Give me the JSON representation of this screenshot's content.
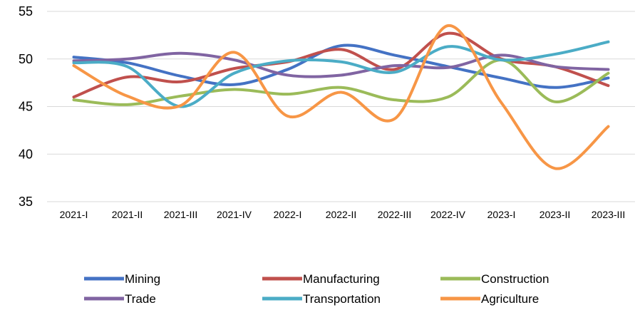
{
  "chart_data": {
    "type": "line",
    "categories": [
      "2021-I",
      "2021-II",
      "2021-III",
      "2021-IV",
      "2022-I",
      "2022-II",
      "2022-III",
      "2022-IV",
      "2023-I",
      "2023-II",
      "2023-III"
    ],
    "ylim": [
      35,
      55
    ],
    "yticks": [
      35,
      40,
      45,
      50,
      55
    ],
    "grid": "horizontal",
    "smooth": true,
    "legend_position": "bottom",
    "series": [
      {
        "name": "Mining",
        "color": "#4472C4",
        "values": [
          50.2,
          49.6,
          48.2,
          47.3,
          48.9,
          51.4,
          50.4,
          49.2,
          48.0,
          47.0,
          48.0
        ]
      },
      {
        "name": "Manufacturing",
        "color": "#C0504D",
        "values": [
          46.0,
          48.1,
          47.6,
          49.0,
          49.7,
          51.0,
          48.9,
          52.7,
          50.0,
          49.2,
          47.2
        ]
      },
      {
        "name": "Construction",
        "color": "#9BBB59",
        "values": [
          45.7,
          45.2,
          46.1,
          46.8,
          46.3,
          47.0,
          45.7,
          46.0,
          49.9,
          45.5,
          48.5
        ]
      },
      {
        "name": "Trade",
        "color": "#8064A2",
        "values": [
          49.8,
          50.0,
          50.6,
          49.9,
          48.3,
          48.3,
          49.3,
          49.1,
          50.4,
          49.2,
          48.9
        ]
      },
      {
        "name": "Transportation",
        "color": "#4BACC6",
        "values": [
          49.6,
          49.2,
          45.0,
          48.5,
          49.8,
          49.7,
          48.6,
          51.3,
          49.9,
          50.5,
          51.8
        ]
      },
      {
        "name": "Agriculture",
        "color": "#F79646",
        "values": [
          49.3,
          46.1,
          45.1,
          50.7,
          44.0,
          46.5,
          43.7,
          53.5,
          45.4,
          38.5,
          42.9
        ]
      }
    ]
  }
}
